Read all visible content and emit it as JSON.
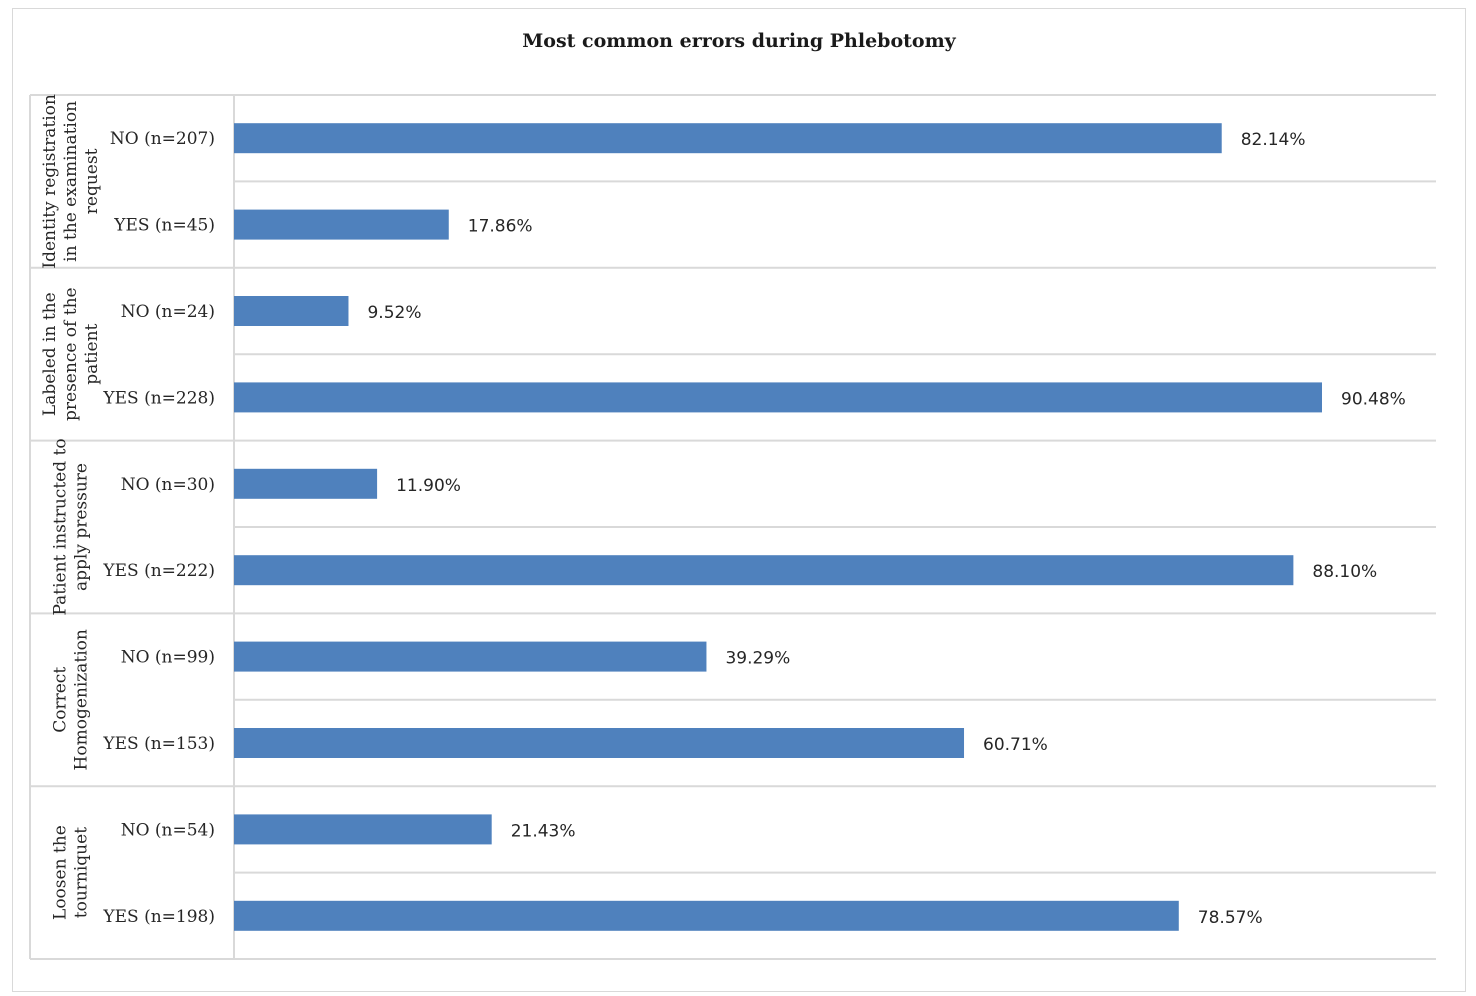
{
  "chart_data": {
    "type": "bar",
    "orientation": "horizontal",
    "title": "Most common errors during Phlebotomy",
    "xlim": [
      0,
      100
    ],
    "unit": "%",
    "grid": true,
    "bar_color": "#4F81BD",
    "groups": [
      {
        "name": "Identity registration in the examination request",
        "name_lines": [
          "Identity registration",
          "in the examination",
          "request"
        ],
        "categories": [
          "NO (n=207)",
          "YES  (n=45)"
        ],
        "values": [
          82.14,
          17.86
        ],
        "labels": [
          "82.14%",
          "17.86%"
        ]
      },
      {
        "name": "Labeled in the presence of the patient",
        "name_lines": [
          "Labeled in the",
          "presence of the",
          "patient"
        ],
        "categories": [
          "NO (n=24)",
          "YES (n=228)"
        ],
        "values": [
          9.52,
          90.48
        ],
        "labels": [
          "9.52%",
          "90.48%"
        ]
      },
      {
        "name": "Patient instructed to apply pressure",
        "name_lines": [
          "Patient instructed to",
          "apply pressure"
        ],
        "categories": [
          "NO (n=30)",
          "YES (n=222)"
        ],
        "values": [
          11.9,
          88.1
        ],
        "labels": [
          "11.90%",
          "88.10%"
        ]
      },
      {
        "name": "Correct Homogenization",
        "name_lines": [
          "Correct",
          "Homogenization"
        ],
        "categories": [
          "NO (n=99)",
          "YES (n=153)"
        ],
        "values": [
          39.29,
          60.71
        ],
        "labels": [
          "39.29%",
          "60.71%"
        ]
      },
      {
        "name": "Loosen the tourniquet",
        "name_lines": [
          "Loosen the",
          "tourniquet"
        ],
        "categories": [
          "NO (n=54)",
          "YES (n=198)"
        ],
        "values": [
          21.43,
          78.57
        ],
        "labels": [
          "21.43%",
          "78.57%"
        ]
      }
    ]
  }
}
